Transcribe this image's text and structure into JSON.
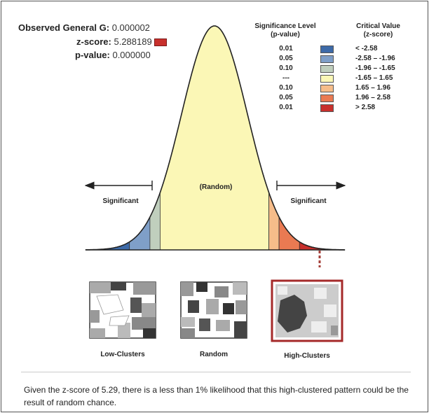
{
  "stats": {
    "observed_label": "Observed General G:",
    "observed_value": "0.000002",
    "z_label": "z-score:",
    "z_value": "5.288189",
    "p_label": "p-value:",
    "p_value": "0.000000",
    "z_marker_color": "#c8302c"
  },
  "legend": {
    "sig_header_1": "Significance Level",
    "sig_header_2": "(p-value)",
    "crit_header_1": "Critical Value",
    "crit_header_2": "(z-score)",
    "rows": [
      {
        "p": "0.01",
        "z": "< -2.58",
        "color": "#3d6aa8"
      },
      {
        "p": "0.05",
        "z": "-2.58 – -1.96",
        "color": "#7f9fc8"
      },
      {
        "p": "0.10",
        "z": "-1.96 – -1.65",
        "color": "#c0cfbd"
      },
      {
        "p": "---",
        "z": "-1.65 – 1.65",
        "color": "#fbf7b6"
      },
      {
        "p": "0.10",
        "z": "1.65 – 1.96",
        "color": "#f6bd8a"
      },
      {
        "p": "0.05",
        "z": "1.96 – 2.58",
        "color": "#ea7a52"
      },
      {
        "p": "0.01",
        "z": "> 2.58",
        "color": "#c8302c"
      }
    ]
  },
  "curve": {
    "random_label": "(Random)",
    "significant_left": "Significant",
    "significant_right": "Significant"
  },
  "maps": {
    "low": "Low-Clusters",
    "random": "Random",
    "high": "High-Clusters",
    "highlight_color": "#a52a2a"
  },
  "caption": "Given the z-score of 5.29, there is a less than 1% likelihood that this high-clustered pattern could be the result of random chance."
}
